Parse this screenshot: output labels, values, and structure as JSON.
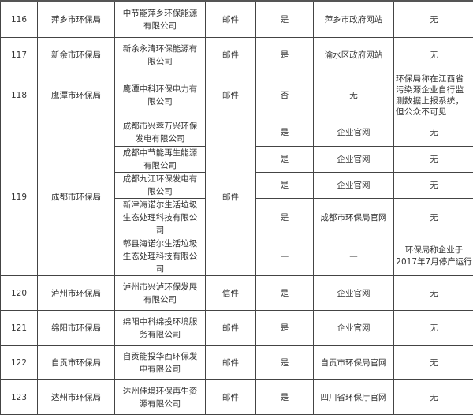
{
  "rows": [
    {
      "no": "116",
      "bureau": "萍乡市环保局",
      "company": "中节能萍乡环保能源有限公司",
      "method": "邮件",
      "reply": "是",
      "site": "萍乡市政府网站",
      "note": "无"
    },
    {
      "no": "117",
      "bureau": "新余市环保局",
      "company": "新余永清环保能源有限公司",
      "method": "邮件",
      "reply": "是",
      "site": "渝水区政府网站",
      "note": "无"
    },
    {
      "no": "118",
      "bureau": "鹰潭市环保局",
      "company": "鹰潭中科环保电力有限公司",
      "method": "邮件",
      "reply": "否",
      "site": "无",
      "note": "环保局称在江西省污染源企业自行监测数据上报系统，但公众不可见"
    },
    {
      "no": "119",
      "bureau": "成都市环保局",
      "method": "邮件",
      "subs": [
        {
          "company": "成都市兴蓉万兴环保发电有限公司",
          "reply": "是",
          "site": "企业官网",
          "note": "无"
        },
        {
          "company": "成都中节能再生能源有限公司",
          "reply": "是",
          "site": "企业官网",
          "note": "无"
        },
        {
          "company": "成都九江环保发电有限公司",
          "reply": "是",
          "site": "企业官网",
          "note": "无"
        },
        {
          "company": "新津海诺尔生活垃圾生态处理科技有限公司",
          "reply": "是",
          "site": "成都市环保局官网",
          "note": "无"
        },
        {
          "company": "郫县海诺尔生活垃圾生态处理科技有限公司",
          "reply": "—",
          "site": "—",
          "note": "环保局称企业于2017年7月停产运行"
        }
      ]
    },
    {
      "no": "120",
      "bureau": "泸州市环保局",
      "company": "泸州市兴泸环保发展有限公司",
      "method": "信件",
      "reply": "是",
      "site": "企业官网",
      "note": "无"
    },
    {
      "no": "121",
      "bureau": "绵阳市环保局",
      "company": "绵阳中科绵投环境服务有限公司",
      "method": "邮件",
      "reply": "是",
      "site": "企业官网",
      "note": "无"
    },
    {
      "no": "122",
      "bureau": "自贡市环保局",
      "company": "自贡能投华西环保发电有限公司",
      "method": "邮件",
      "reply": "是",
      "site": "自贡市环保局官网",
      "note": "无"
    },
    {
      "no": "123",
      "bureau": "达州市环保局",
      "company": "达州佳境环保再生资源有限公司",
      "method": "邮件",
      "reply": "是",
      "site": "四川省环保厅官网",
      "note": "无"
    }
  ]
}
